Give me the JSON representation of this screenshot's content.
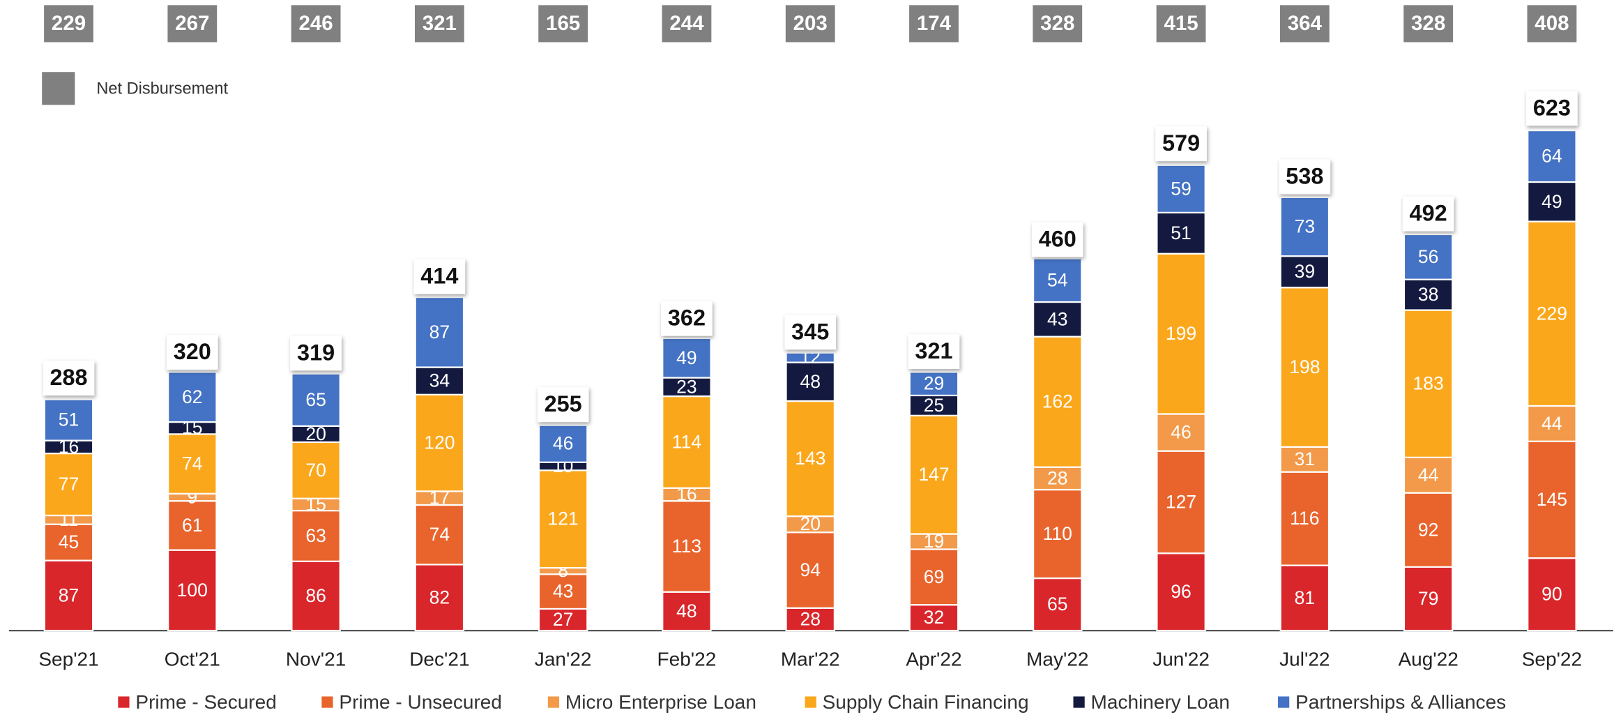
{
  "chart_data": {
    "type": "stacked_bar",
    "categories": [
      "Sep'21",
      "Oct'21",
      "Nov'21",
      "Dec'21",
      "Jan'22",
      "Feb'22",
      "Mar'22",
      "Apr'22",
      "May'22",
      "Jun'22",
      "Jul'22",
      "Aug'22",
      "Sep'22"
    ],
    "series": [
      {
        "name": "Prime - Secured",
        "color": "#d9262b",
        "values": [
          87,
          100,
          86,
          82,
          27,
          48,
          28,
          32,
          65,
          96,
          81,
          79,
          90
        ]
      },
      {
        "name": "Prime - Unsecured",
        "color": "#e8642c",
        "values": [
          45,
          61,
          63,
          74,
          43,
          113,
          94,
          69,
          110,
          127,
          116,
          92,
          145
        ]
      },
      {
        "name": "Micro Enterprise Loan",
        "color": "#f29a4a",
        "values": [
          11,
          9,
          15,
          17,
          8,
          16,
          20,
          19,
          28,
          46,
          31,
          44,
          44
        ]
      },
      {
        "name": "Supply Chain Financing",
        "color": "#fba71b",
        "values": [
          77,
          74,
          70,
          120,
          121,
          114,
          143,
          147,
          162,
          199,
          198,
          183,
          229
        ]
      },
      {
        "name": "Machinery Loan",
        "color": "#141a3f",
        "values": [
          16,
          15,
          20,
          34,
          10,
          23,
          48,
          25,
          43,
          51,
          39,
          38,
          49
        ]
      },
      {
        "name": "Partnerships & Alliances",
        "color": "#4472c4",
        "values": [
          51,
          62,
          65,
          87,
          46,
          49,
          12,
          29,
          54,
          59,
          73,
          56,
          64
        ]
      }
    ],
    "totals": [
      288,
      320,
      319,
      414,
      255,
      362,
      345,
      321,
      460,
      579,
      538,
      492,
      623
    ],
    "net_disbursement": {
      "name": "Net Disbursement",
      "color": "#808080",
      "values": [
        229,
        267,
        246,
        321,
        165,
        244,
        203,
        174,
        328,
        415,
        364,
        328,
        408
      ]
    },
    "ylim": [
      0,
      700
    ],
    "legend": "bottom"
  }
}
